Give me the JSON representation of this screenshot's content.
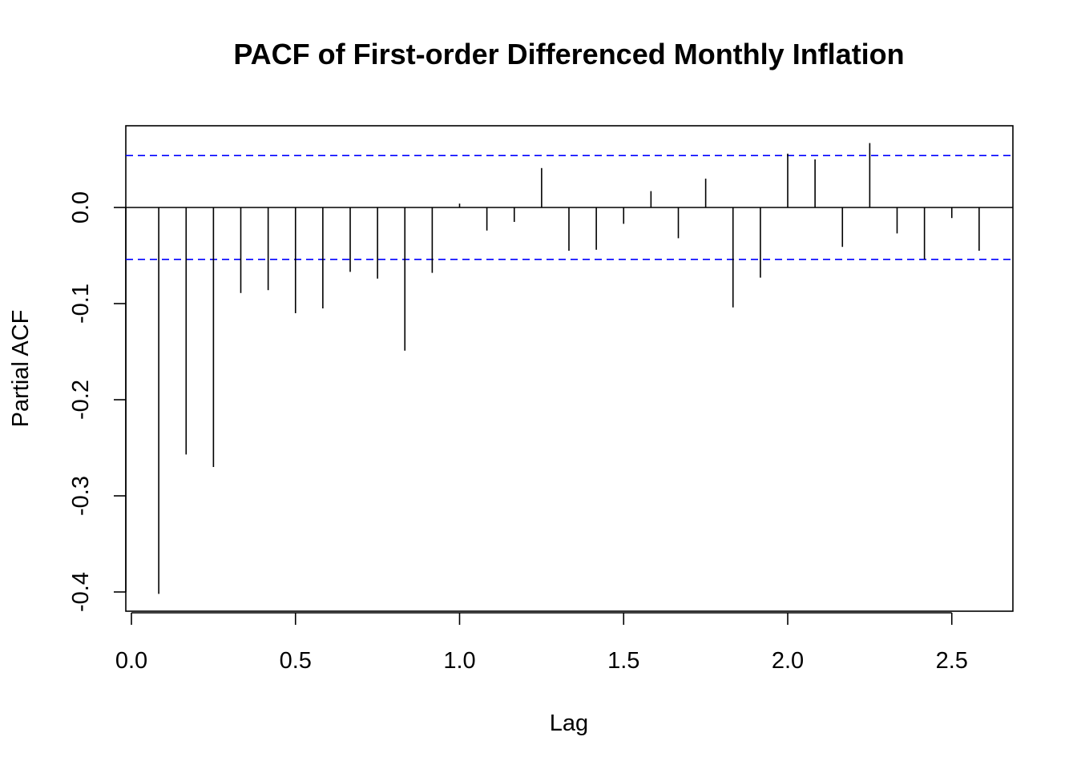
{
  "chart_data": {
    "type": "bar",
    "title": "PACF of First-order Differenced Monthly Inflation",
    "xlabel": "Lag",
    "ylabel": "Partial ACF",
    "xlim": [
      0.0,
      2.6
    ],
    "ylim": [
      -0.42,
      0.085
    ],
    "x_ticks": [
      "0.0",
      "0.5",
      "1.0",
      "1.5",
      "2.0",
      "2.5"
    ],
    "y_ticks": [
      "-0.4",
      "-0.3",
      "-0.2",
      "-0.1",
      "0.0"
    ],
    "confidence_bound": 0.054,
    "colors": {
      "bars": "#000000",
      "bounds": "#0000ff",
      "zero_line": "#000000"
    },
    "lags": [
      0.0833,
      0.1667,
      0.25,
      0.3333,
      0.4167,
      0.5,
      0.5833,
      0.6667,
      0.75,
      0.8333,
      0.9167,
      1.0,
      1.0833,
      1.1667,
      1.25,
      1.3333,
      1.4167,
      1.5,
      1.5833,
      1.6667,
      1.75,
      1.8333,
      1.9167,
      2.0,
      2.0833,
      2.1667,
      2.25,
      2.3333,
      2.4167,
      2.5,
      2.5833
    ],
    "values": [
      -0.402,
      -0.257,
      -0.27,
      -0.089,
      -0.086,
      -0.11,
      -0.105,
      -0.067,
      -0.074,
      -0.149,
      -0.068,
      0.004,
      -0.024,
      -0.015,
      0.041,
      -0.045,
      -0.044,
      -0.017,
      0.017,
      -0.032,
      0.03,
      -0.104,
      -0.073,
      0.056,
      0.05,
      -0.041,
      0.067,
      -0.027,
      -0.054,
      -0.011,
      -0.045
    ]
  }
}
